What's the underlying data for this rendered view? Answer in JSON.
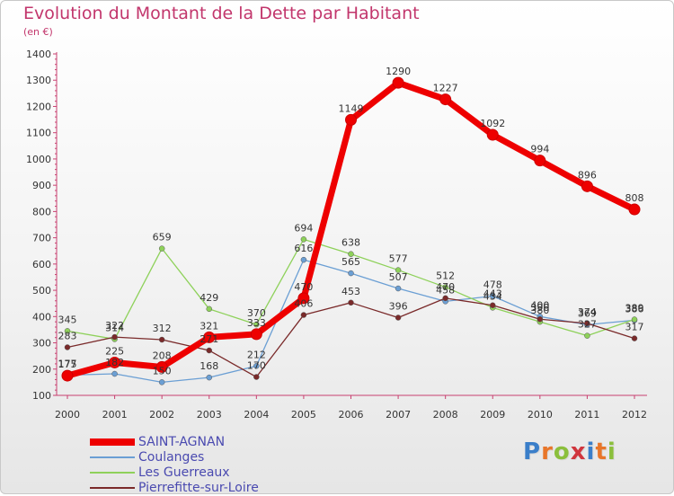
{
  "header": {
    "title": "Evolution du Montant de la Dette par Habitant",
    "unit": "(en €)"
  },
  "logo": {
    "text": "Proxiti",
    "colors": [
      "#3a7ec9",
      "#e8762a",
      "#8bbf3c",
      "#d0353d",
      "#3a7ec9",
      "#e8762a",
      "#8bbf3c"
    ]
  },
  "colors": {
    "title": "#c2366c",
    "axis_text": "#333333",
    "legend_text": "#4a4ab0"
  },
  "chart_data": {
    "type": "line",
    "title": "Evolution du Montant de la Dette par Habitant",
    "subtitle": "(en €)",
    "xlabel": "",
    "ylabel": "",
    "x": [
      "2000",
      "2001",
      "2002",
      "2003",
      "2004",
      "2005",
      "2006",
      "2007",
      "2008",
      "2009",
      "2010",
      "2011",
      "2012"
    ],
    "ylim": [
      100,
      1400
    ],
    "yticks": [
      100,
      200,
      300,
      400,
      500,
      600,
      700,
      800,
      900,
      1000,
      1100,
      1200,
      1300,
      1400
    ],
    "grid": false,
    "legend": "bottom-left",
    "series": [
      {
        "name": "SAINT-AGNAN",
        "color": "#ee0000",
        "width": 7,
        "marker": 6,
        "values": [
          175,
          225,
          208,
          321,
          333,
          470,
          1149,
          1290,
          1227,
          1092,
          994,
          896,
          808
        ]
      },
      {
        "name": "Coulanges",
        "color": "#6b9fd4",
        "width": 1.3,
        "marker": 3,
        "values": [
          177,
          182,
          150,
          168,
          212,
          616,
          565,
          507,
          458,
          478,
          400,
          369,
          386
        ]
      },
      {
        "name": "Les Guerreaux",
        "color": "#8ed15a",
        "width": 1.3,
        "marker": 3,
        "values": [
          345,
          314,
          659,
          429,
          370,
          694,
          638,
          577,
          512,
          434,
          380,
          327,
          389
        ]
      },
      {
        "name": "Pierrefitte-sur-Loire",
        "color": "#7a2a2a",
        "width": 1.3,
        "marker": 3,
        "values": [
          283,
          322,
          312,
          271,
          170,
          406,
          453,
          396,
          470,
          443,
          390,
          374,
          317
        ]
      }
    ]
  }
}
